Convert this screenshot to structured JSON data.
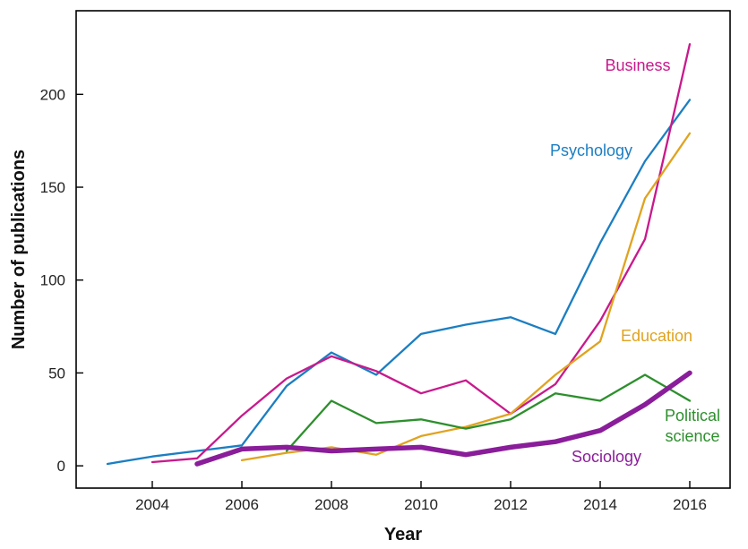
{
  "chart_data": {
    "type": "line",
    "xlabel": "Year",
    "ylabel": "Number of publications",
    "xlim": [
      2002.3,
      2016.9
    ],
    "ylim": [
      -12,
      245
    ],
    "xticks": [
      2004,
      2006,
      2008,
      2010,
      2012,
      2014,
      2016
    ],
    "yticks": [
      0,
      50,
      100,
      150,
      200
    ],
    "grid": false,
    "legend": "inline labels",
    "series": [
      {
        "name": "Psychology",
        "color": "#1b7ec2",
        "x": [
          2003,
          2004,
          2005,
          2006,
          2007,
          2008,
          2009,
          2010,
          2011,
          2012,
          2013,
          2014,
          2015,
          2016
        ],
        "values": [
          1,
          5,
          8,
          11,
          43,
          61,
          49,
          71,
          76,
          80,
          71,
          120,
          164,
          197
        ]
      },
      {
        "name": "Business",
        "color": "#c8198c",
        "x": [
          2004,
          2005,
          2006,
          2007,
          2008,
          2009,
          2010,
          2011,
          2012,
          2013,
          2014,
          2015,
          2016
        ],
        "values": [
          2,
          4,
          27,
          47,
          59,
          51,
          39,
          46,
          28,
          44,
          78,
          122,
          227
        ]
      },
      {
        "name": "Education",
        "color": "#e0a31f",
        "x": [
          2006,
          2007,
          2008,
          2009,
          2010,
          2011,
          2012,
          2013,
          2014,
          2015,
          2016
        ],
        "values": [
          3,
          7,
          10,
          6,
          16,
          21,
          28,
          49,
          67,
          144,
          179
        ]
      },
      {
        "name": "Political science",
        "label_lines": [
          "Political",
          "science"
        ],
        "color": "#2d8f2d",
        "x": [
          2007,
          2008,
          2009,
          2010,
          2011,
          2012,
          2013,
          2014,
          2015,
          2016
        ],
        "values": [
          8,
          35,
          23,
          25,
          20,
          25,
          39,
          35,
          49,
          35
        ]
      },
      {
        "name": "Sociology",
        "color": "#8a1d9a",
        "x": [
          2005,
          2006,
          2007,
          2008,
          2009,
          2010,
          2011,
          2012,
          2013,
          2014,
          2015,
          2016
        ],
        "values": [
          1,
          9,
          10,
          8,
          9,
          10,
          6,
          10,
          13,
          19,
          33,
          50
        ]
      }
    ]
  }
}
